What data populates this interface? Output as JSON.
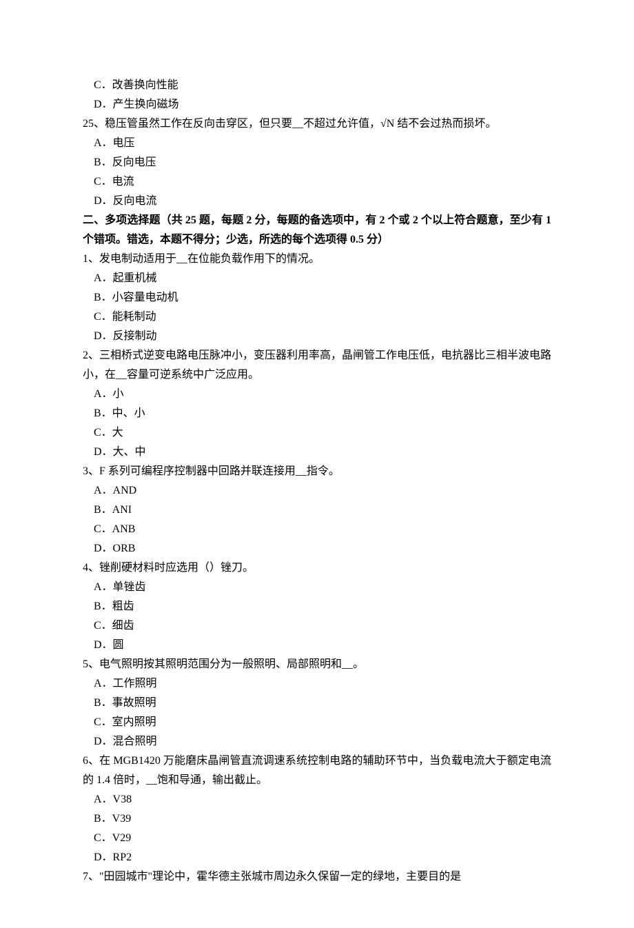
{
  "colors": {
    "text": "#000000",
    "background": "#ffffff"
  },
  "typography": {
    "font_family": "SimSun",
    "font_size_pt": 12,
    "line_height": 1.75
  },
  "top_fragment": {
    "options": [
      "C．改善换向性能",
      "D．产生换向磁场"
    ],
    "q25": {
      "stem": "25、稳压管虽然工作在反向击穿区，但只要__不超过允许值，√N 结不会过热而损坏。",
      "options": [
        "A．电压",
        "B．反向电压",
        "C．电流",
        "D．反向电流"
      ]
    }
  },
  "section2_header": "二、多项选择题（共 25 题，每题 2 分，每题的备选项中，有 2 个或 2 个以上符合题意，至少有 1 个错项。错选，本题不得分；少选，所选的每个选项得 0.5 分）",
  "questions": [
    {
      "stem": "1、发电制动适用于__在位能负载作用下的情况。",
      "options": [
        "A．起重机械",
        "B．小容量电动机",
        "C．能耗制动",
        "D．反接制动"
      ]
    },
    {
      "stem": "2、三相桥式逆变电路电压脉冲小，变压器利用率高，晶闸管工作电压低，电抗器比三相半波电路小，在__容量可逆系统中广泛应用。",
      "options": [
        "A．小",
        "B．中、小",
        "C．大",
        "D．大、中"
      ]
    },
    {
      "stem": "3、F 系列可编程序控制器中回路并联连接用__指令。",
      "options": [
        "A．AND",
        "B．ANI",
        "C．ANB",
        "D．ORB"
      ]
    },
    {
      "stem": "4、锉削硬材料时应选用（）锉刀。",
      "options": [
        "A．单锉齿",
        "B．粗齿",
        "C．细齿",
        "D．圆"
      ]
    },
    {
      "stem": "5、电气照明按其照明范围分为一般照明、局部照明和__。",
      "options": [
        "A．工作照明",
        "B．事故照明",
        "C．室内照明",
        "D．混合照明"
      ]
    },
    {
      "stem": "6、在 MGB1420 万能磨床晶闸管直流调速系统控制电路的辅助环节中，当负载电流大于额定电流的 1.4 倍时，__饱和导通，输出截止。",
      "options": [
        "A．V38",
        "B．V39",
        "C．V29",
        "D．RP2"
      ]
    },
    {
      "stem": "7、\"田园城市\"理论中，霍华德主张城市周边永久保留一定的绿地，主要目的是",
      "options": []
    }
  ]
}
